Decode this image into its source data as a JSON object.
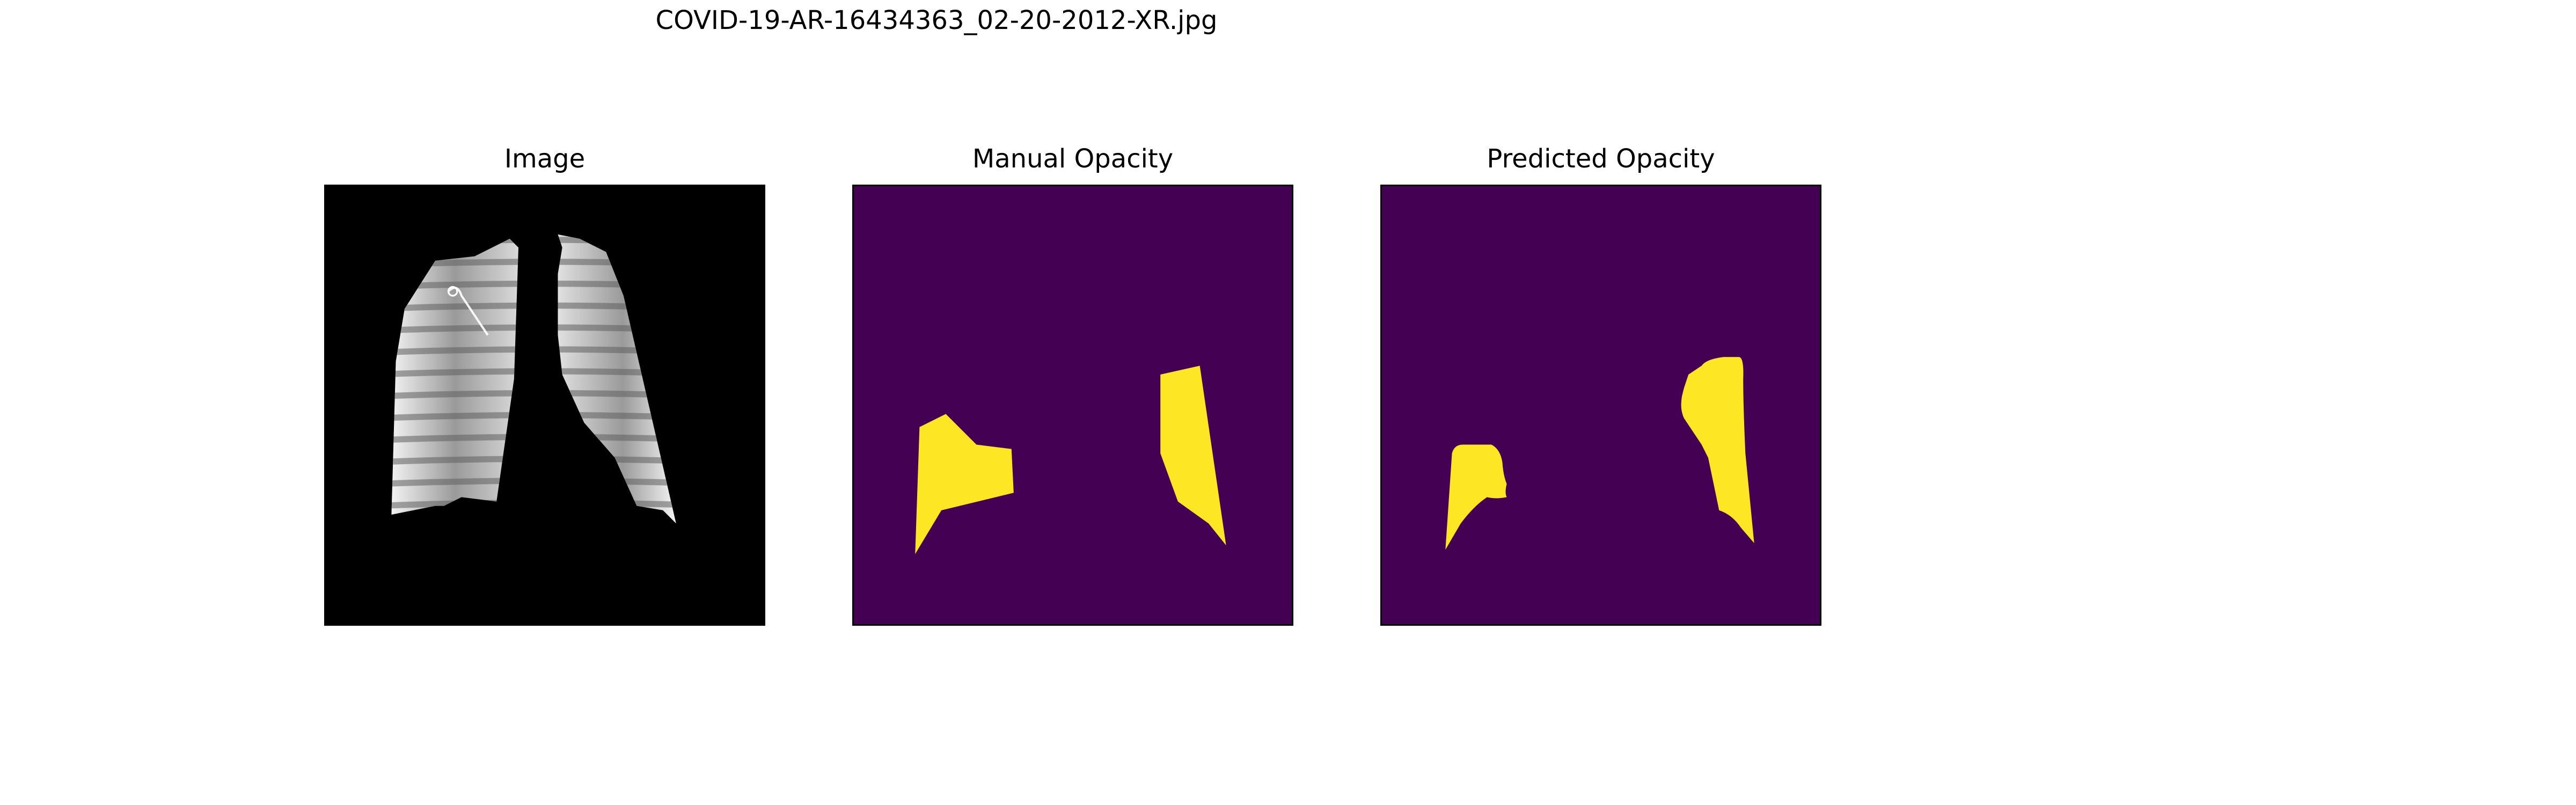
{
  "figure": {
    "title": "COVID-19-AR-16434363_02-20-2012-XR.jpg"
  },
  "panels": [
    {
      "title": "Image",
      "content": "chest x-ray with lung fields shown on black background"
    },
    {
      "title": "Manual Opacity",
      "content": "yellow opacity mask regions on purple background"
    },
    {
      "title": "Predicted Opacity",
      "content": "yellow predicted opacity regions on purple background"
    }
  ],
  "colors": {
    "mask_background": "#440154",
    "mask_foreground": "#fde725",
    "xray_background": "#000000"
  }
}
